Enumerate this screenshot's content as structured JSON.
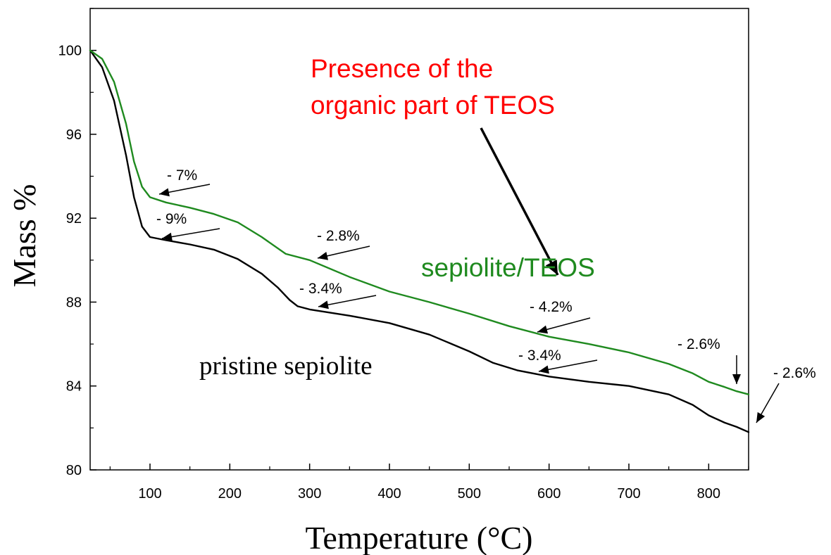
{
  "chart_data": {
    "type": "line",
    "title": "",
    "xlabel": "Temperature (°C)",
    "ylabel": "Mass %",
    "xlim": [
      25,
      850
    ],
    "ylim": [
      80,
      102
    ],
    "xticks": [
      100,
      200,
      300,
      400,
      500,
      600,
      700,
      800
    ],
    "yticks": [
      80,
      84,
      88,
      92,
      96,
      100
    ],
    "grid": false,
    "series": [
      {
        "name": "pristine sepiolite",
        "color": "#000000",
        "x": [
          25,
          40,
          55,
          70,
          80,
          90,
          100,
          120,
          150,
          180,
          210,
          240,
          260,
          275,
          285,
          300,
          350,
          400,
          450,
          500,
          530,
          560,
          600,
          650,
          700,
          750,
          780,
          800,
          820,
          835,
          850
        ],
        "y": [
          100,
          99.2,
          97.6,
          95.0,
          93.0,
          91.6,
          91.1,
          90.95,
          90.75,
          90.5,
          90.05,
          89.35,
          88.7,
          88.1,
          87.8,
          87.65,
          87.35,
          87.0,
          86.45,
          85.65,
          85.1,
          84.75,
          84.45,
          84.2,
          84.0,
          83.6,
          83.1,
          82.6,
          82.25,
          82.05,
          81.8
        ]
      },
      {
        "name": "sepiolite/TEOS",
        "color": "#1f8a1f",
        "x": [
          25,
          40,
          55,
          70,
          80,
          90,
          100,
          120,
          150,
          180,
          210,
          240,
          270,
          300,
          350,
          400,
          450,
          500,
          550,
          600,
          650,
          700,
          750,
          780,
          800,
          820,
          835,
          850
        ],
        "y": [
          100,
          99.6,
          98.5,
          96.5,
          94.7,
          93.5,
          93.0,
          92.75,
          92.5,
          92.2,
          91.8,
          91.1,
          90.3,
          90.0,
          89.2,
          88.5,
          88.0,
          87.45,
          86.85,
          86.35,
          86.0,
          85.6,
          85.05,
          84.6,
          84.2,
          83.95,
          83.75,
          83.6
        ]
      }
    ],
    "annotations": {
      "black_labels": [
        "- 7%",
        "- 9%",
        "- 2.8%",
        "- 3.4%",
        "- 4.2%",
        "- 3.4%",
        "- 2.6%",
        "- 2.6%"
      ],
      "curve_label_pristine": "pristine sepiolite",
      "curve_label_teos": "sepiolite/TEOS",
      "note_line1": "Presence of the",
      "note_line2": "organic part of TEOS",
      "note_color": "#ff0000"
    }
  }
}
